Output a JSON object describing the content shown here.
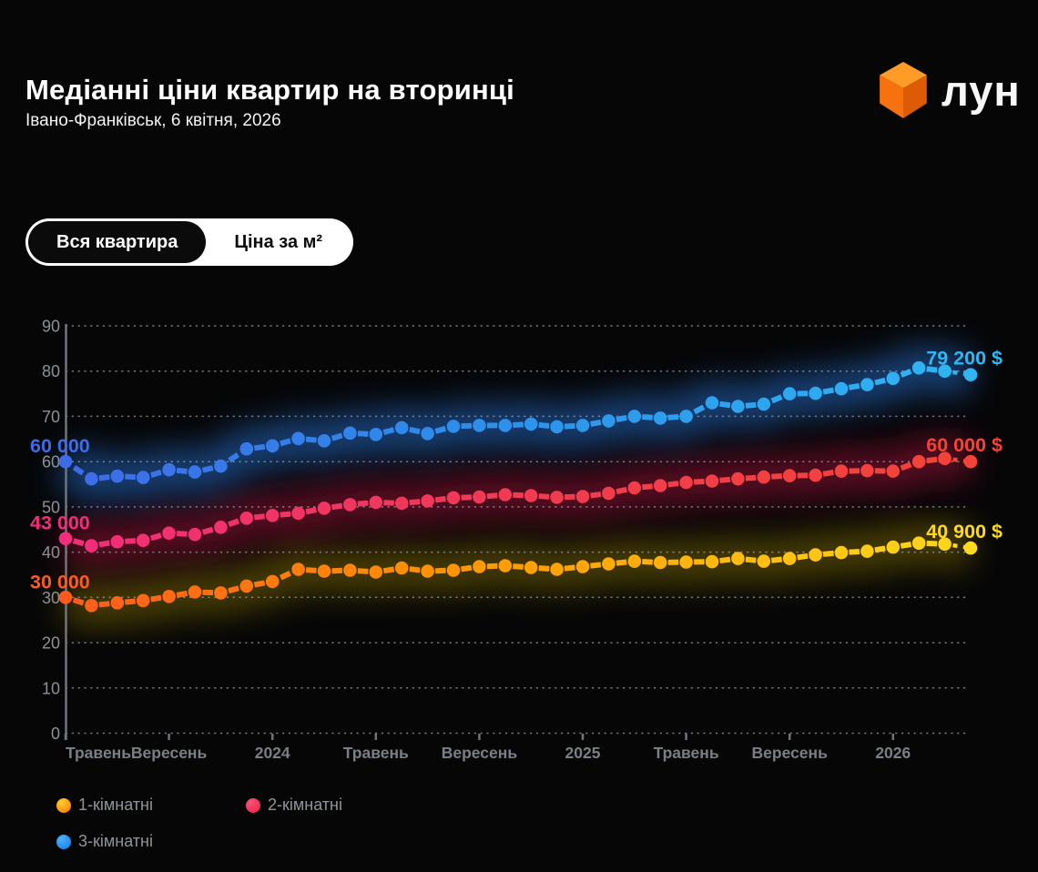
{
  "header": {
    "title": "Медіанні ціни квартир на вторинці",
    "subtitle": "Івано-Франківськ, 6 квітня, 2026",
    "brand": {
      "logo_icon": "lun-cube-icon",
      "wordmark": "лун"
    }
  },
  "view_toggle": {
    "options": [
      {
        "label": "Вся квартира",
        "selected": true
      },
      {
        "label": "Ціна за м²",
        "selected": false
      }
    ]
  },
  "chart_data": {
    "type": "line",
    "unit": "USD",
    "values_unit": "thousands of $",
    "ylim": [
      0,
      90
    ],
    "yticks": [
      0,
      10,
      20,
      30,
      40,
      50,
      60,
      70,
      80,
      90
    ],
    "grid": "horizontal-dashed",
    "legend_position": "bottom-left",
    "n_points": 36,
    "x_ticks": [
      {
        "i": 0,
        "label": "Травень"
      },
      {
        "i": 4,
        "label": "Вересень"
      },
      {
        "i": 8,
        "label": "2024"
      },
      {
        "i": 12,
        "label": "Травень"
      },
      {
        "i": 16,
        "label": "Вересень"
      },
      {
        "i": 20,
        "label": "2025"
      },
      {
        "i": 24,
        "label": "Травень"
      },
      {
        "i": 28,
        "label": "Вересень"
      },
      {
        "i": 32,
        "label": "2026"
      }
    ],
    "series": [
      {
        "key": "1-rooms",
        "name": "1-кімнатні",
        "color_start": "#FF5A1E",
        "color_mid": "#FF9800",
        "color_end": "#FFD91C",
        "glow_color": "#A38A00",
        "glow_opacity": 0.42,
        "first_value_label": "30 000",
        "last_value_label": "40 900 $",
        "last_value": 40900,
        "values": [
          30.0,
          28.2,
          28.8,
          29.3,
          30.2,
          31.2,
          31.0,
          32.5,
          33.5,
          36.2,
          35.8,
          36.0,
          35.6,
          36.5,
          35.8,
          36.0,
          36.8,
          37.0,
          36.6,
          36.2,
          36.8,
          37.4,
          38.0,
          37.7,
          37.8,
          37.9,
          38.6,
          38.0,
          38.6,
          39.4,
          39.9,
          40.2,
          41.1,
          42.0,
          41.8,
          40.9
        ]
      },
      {
        "key": "2-rooms",
        "name": "2-кімнатні",
        "color_start": "#F22D7B",
        "color_mid": "#F03A55",
        "color_end": "#F44336",
        "glow_color": "#C21342",
        "glow_opacity": 0.45,
        "first_value_label": "43 000",
        "last_value_label": "60 000 $",
        "last_value": 60000,
        "values": [
          43.0,
          41.4,
          42.3,
          42.6,
          44.2,
          43.9,
          45.5,
          47.5,
          48.1,
          48.6,
          49.7,
          50.5,
          51.0,
          50.8,
          51.3,
          52.0,
          52.2,
          52.7,
          52.5,
          52.1,
          52.3,
          53.0,
          54.2,
          54.7,
          55.4,
          55.7,
          56.2,
          56.6,
          56.9,
          57.0,
          57.9,
          58.0,
          57.9,
          60.0,
          60.7,
          60.0
        ]
      },
      {
        "key": "3-rooms",
        "name": "3-кімнатні",
        "color_start": "#3E6BE8",
        "color_mid": "#2D8EEA",
        "color_end": "#2FB6F3",
        "glow_color": "#2C7BE5",
        "glow_opacity": 0.5,
        "first_value_label": "60 000",
        "last_value_label": "79 200 $",
        "last_value": 79200,
        "values": [
          60.0,
          56.2,
          56.8,
          56.5,
          58.2,
          57.7,
          59.0,
          62.8,
          63.5,
          65.1,
          64.6,
          66.3,
          66.0,
          67.5,
          66.2,
          67.8,
          68.0,
          68.0,
          68.3,
          67.7,
          68.0,
          69.0,
          70.0,
          69.6,
          70.0,
          73.0,
          72.2,
          72.7,
          75.0,
          75.1,
          76.1,
          77.0,
          78.4,
          80.7,
          80.0,
          79.2
        ]
      }
    ]
  },
  "legend": {
    "items": [
      {
        "label": "1-кімнатні",
        "color": "#FF9808"
      },
      {
        "label": "2-кімнатні",
        "color": "#F4335C"
      },
      {
        "label": "3-кімнатні",
        "color": "#2196F3"
      }
    ]
  },
  "colors": {
    "background": "#060607",
    "title_text": "#FFFFFF",
    "axis_text": "#8D9196",
    "x_axis_text": "#7A7F87",
    "toggle_bg": "#FFFFFF",
    "toggle_selected_bg": "#0B0B0C"
  }
}
